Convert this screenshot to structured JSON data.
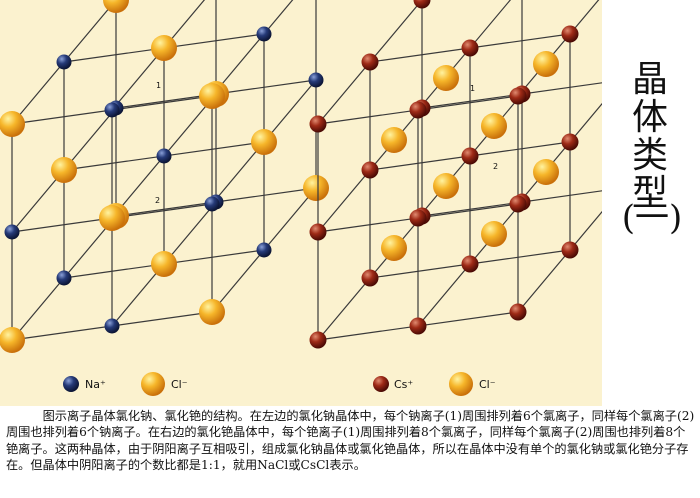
{
  "title": {
    "chars": [
      "晶",
      "体",
      "类",
      "型"
    ],
    "subtitle": "(一)"
  },
  "figure": {
    "left_lattice": {
      "legend": [
        {
          "ion": "Na+",
          "label": "Na⁺",
          "color": "#1a2a55"
        },
        {
          "ion": "Cl-",
          "label": "Cl⁻",
          "color": "#f2a11b"
        }
      ],
      "site_labels": [
        "1",
        "2"
      ]
    },
    "right_lattice": {
      "legend": [
        {
          "ion": "Cs+",
          "label": "Cs⁺",
          "color": "#8a1a10"
        },
        {
          "ion": "Cl-",
          "label": "Cl⁻",
          "color": "#f2a11b"
        }
      ],
      "site_labels": [
        "1",
        "2"
      ]
    }
  },
  "caption": "图示离子晶体氯化钠、氯化铯的结构。在左边的氯化钠晶体中，每个钠离子(1)周围排列着6个氯离子，同样每个氯离子(2)周围也排列着6个钠离子。在右边的氯化铯晶体中，每个铯离子(1)周围排列着8个氯离子，同样每个氯离子(2)周围也排列着8个铯离子。这两种晶体，由于阴阳离子互相吸引，组成氯化钠晶体或氯化铯晶体，所以在晶体中没有单个的氯化钠或氯化铯分子存在。但晶体中阴阳离子的个数比都是1:1，就用NaCl或CsCl表示。"
}
